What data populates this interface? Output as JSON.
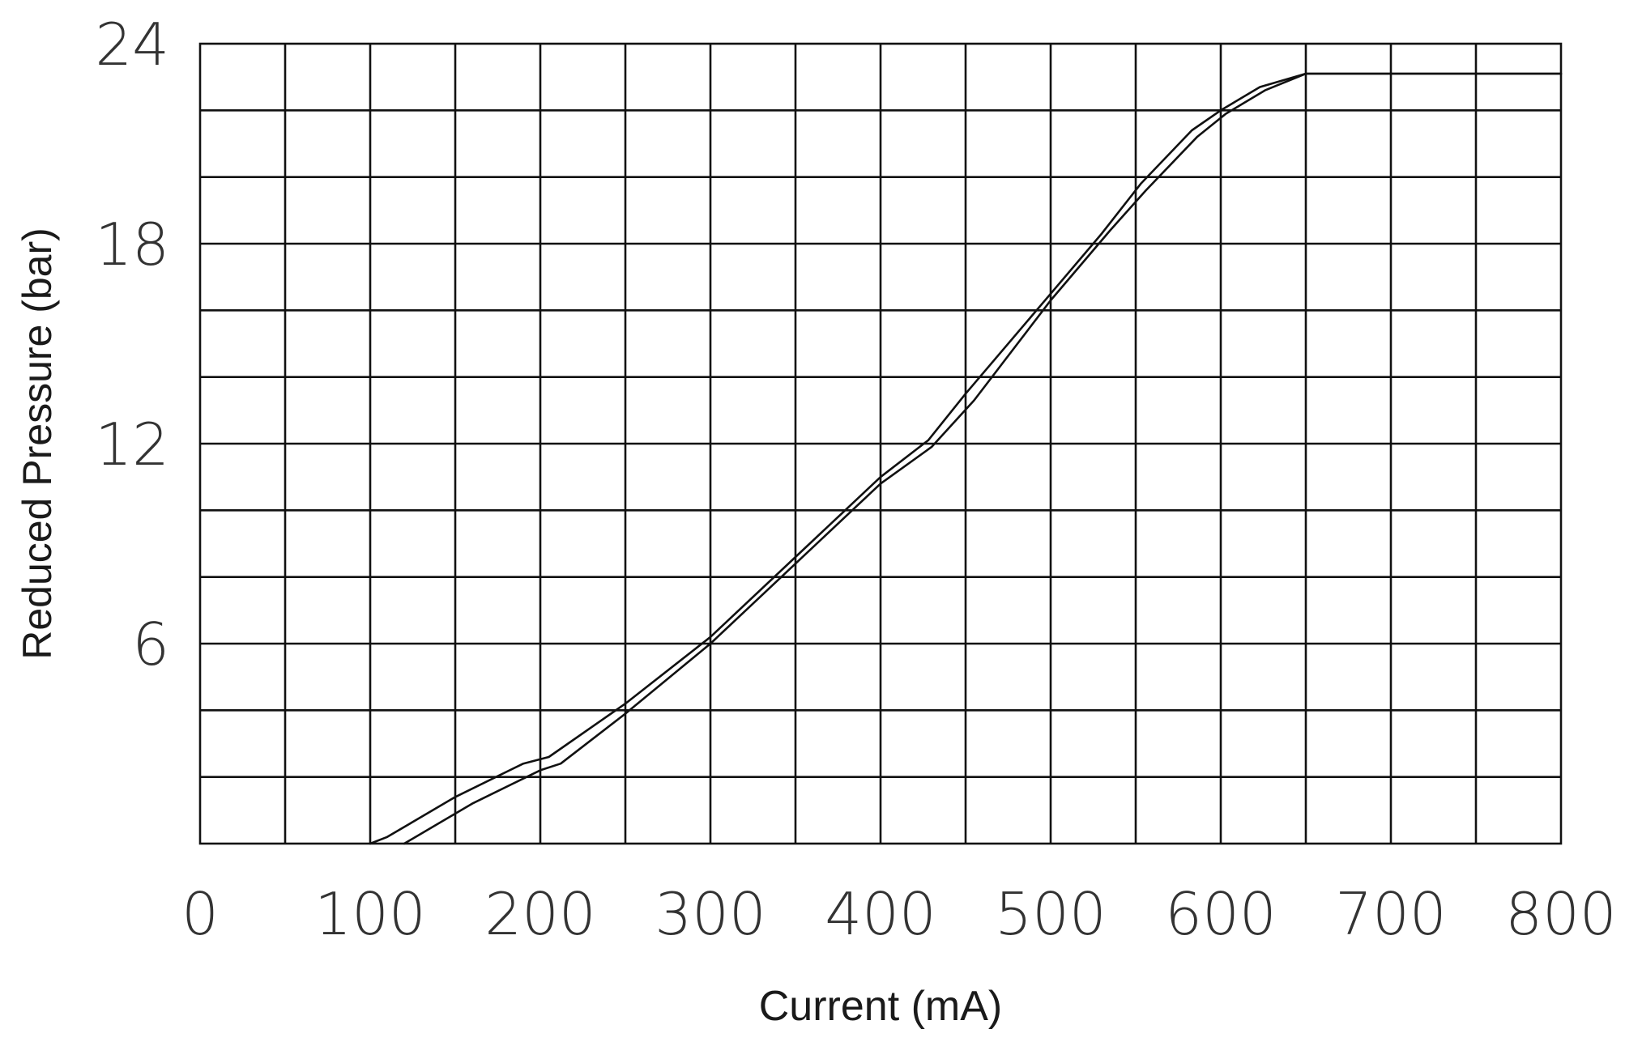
{
  "chart_data": {
    "type": "line",
    "xlabel": "Current (mA)",
    "ylabel": "Reduced Pressure (bar)",
    "xlim": [
      0,
      800
    ],
    "ylim": [
      0,
      24
    ],
    "x_ticks": [
      "0",
      "100",
      "200",
      "300",
      "400",
      "500",
      "600",
      "700",
      "800"
    ],
    "y_ticks": [
      "6",
      "12",
      "18",
      "24"
    ],
    "x_grid_step": 50,
    "y_grid_step": 2,
    "grid": true,
    "legend": "none",
    "line_color": "#111111",
    "series": [
      {
        "x": [
          100,
          110,
          150,
          190,
          205,
          250,
          300,
          350,
          400,
          428,
          450,
          500,
          530,
          553,
          583,
          600,
          623,
          650,
          800
        ],
        "y": [
          0,
          0.2,
          1.4,
          2.4,
          2.6,
          4.2,
          6.2,
          8.6,
          11,
          12.1,
          13.5,
          16.5,
          18.3,
          19.8,
          21.4,
          22.0,
          22.7,
          23.1,
          23.1
        ]
      },
      {
        "x": [
          120,
          160,
          200,
          212,
          250,
          300,
          350,
          400,
          430,
          455,
          500,
          535,
          556,
          586,
          603,
          626,
          650,
          800
        ],
        "y": [
          0,
          1.2,
          2.2,
          2.4,
          3.9,
          6.0,
          8.4,
          10.8,
          11.9,
          13.3,
          16.3,
          18.4,
          19.6,
          21.2,
          21.9,
          22.6,
          23.1,
          23.1
        ]
      }
    ]
  }
}
